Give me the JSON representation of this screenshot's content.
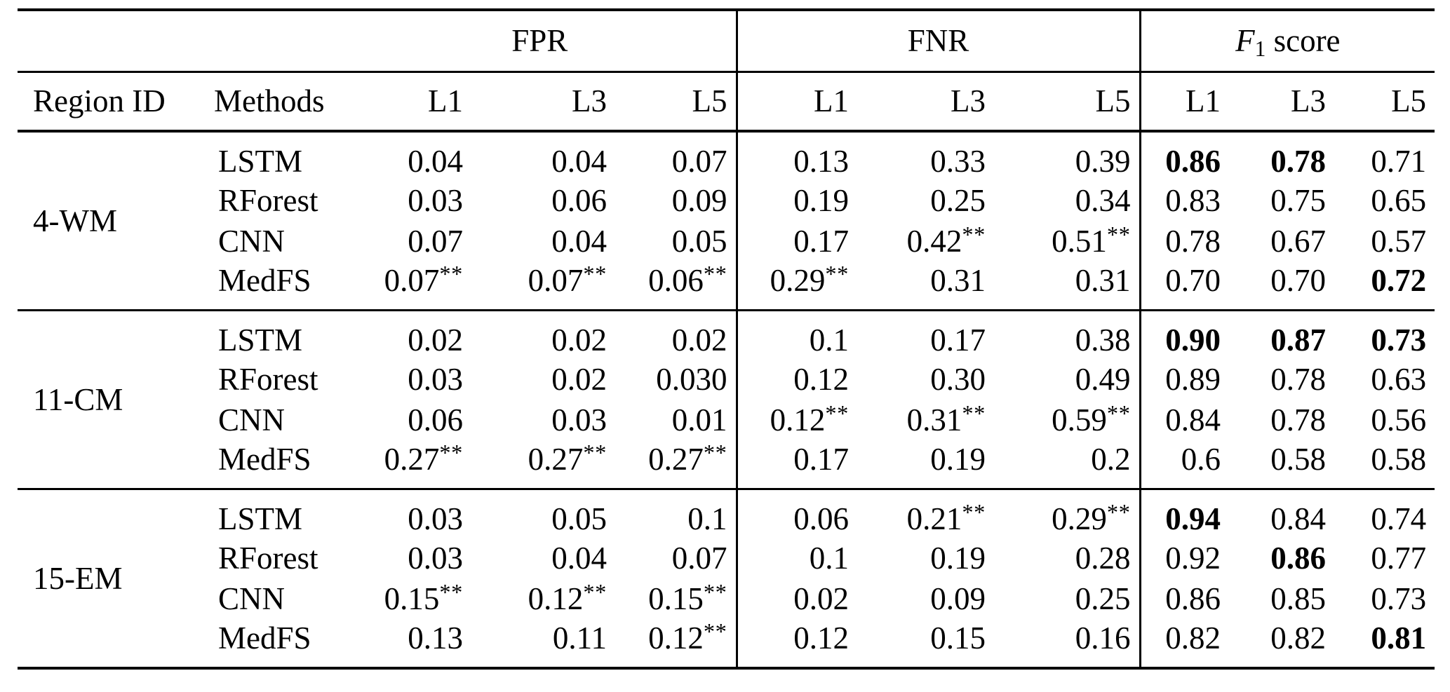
{
  "table": {
    "corner": {
      "region_id": "Region ID",
      "methods": "Methods"
    },
    "groups": [
      {
        "id": "fpr",
        "label": "FPR"
      },
      {
        "id": "fnr",
        "label": "FNR"
      },
      {
        "id": "f1",
        "label_parts": {
          "italic": "F",
          "subscript": "1",
          "text": "score"
        }
      }
    ],
    "level_headers": [
      "L1",
      "L3",
      "L5"
    ],
    "significance_marker": "**",
    "blocks": [
      {
        "region": "4-WM",
        "rows": [
          {
            "method": "LSTM",
            "fpr": [
              "0.04",
              "0.04",
              "0.07"
            ],
            "fnr": [
              "0.13",
              "0.33",
              "0.39"
            ],
            "f1": [
              "0.86",
              "0.78",
              "0.71"
            ],
            "f1_bold": [
              true,
              true,
              false
            ]
          },
          {
            "method": "RForest",
            "fpr": [
              "0.03",
              "0.06",
              "0.09"
            ],
            "fnr": [
              "0.19",
              "0.25",
              "0.34"
            ],
            "f1": [
              "0.83",
              "0.75",
              "0.65"
            ],
            "f1_bold": [
              false,
              false,
              false
            ]
          },
          {
            "method": "CNN",
            "fpr": [
              "0.07",
              "0.04",
              "0.05"
            ],
            "fnr": [
              "0.17",
              "0.42**",
              "0.51**"
            ],
            "f1": [
              "0.78",
              "0.67",
              "0.57"
            ],
            "f1_bold": [
              false,
              false,
              false
            ]
          },
          {
            "method": "MedFS",
            "fpr": [
              "0.07**",
              "0.07**",
              "0.06**"
            ],
            "fnr": [
              "0.29**",
              "0.31",
              "0.31"
            ],
            "f1": [
              "0.70",
              "0.70",
              "0.72"
            ],
            "f1_bold": [
              false,
              false,
              true
            ]
          }
        ]
      },
      {
        "region": "11-CM",
        "rows": [
          {
            "method": "LSTM",
            "fpr": [
              "0.02",
              "0.02",
              "0.02"
            ],
            "fnr": [
              "0.1",
              "0.17",
              "0.38"
            ],
            "f1": [
              "0.90",
              "0.87",
              "0.73"
            ],
            "f1_bold": [
              true,
              true,
              true
            ]
          },
          {
            "method": "RForest",
            "fpr": [
              "0.03",
              "0.02",
              "0.030"
            ],
            "fnr": [
              "0.12",
              "0.30",
              "0.49"
            ],
            "f1": [
              "0.89",
              "0.78",
              "0.63"
            ],
            "f1_bold": [
              false,
              false,
              false
            ]
          },
          {
            "method": "CNN",
            "fpr": [
              "0.06",
              "0.03",
              "0.01"
            ],
            "fnr": [
              "0.12**",
              "0.31**",
              "0.59**"
            ],
            "f1": [
              "0.84",
              "0.78",
              "0.56"
            ],
            "f1_bold": [
              false,
              false,
              false
            ]
          },
          {
            "method": "MedFS",
            "fpr": [
              "0.27**",
              "0.27**",
              "0.27**"
            ],
            "fnr": [
              "0.17",
              "0.19",
              "0.2"
            ],
            "f1": [
              "0.6",
              "0.58",
              "0.58"
            ],
            "f1_bold": [
              false,
              false,
              false
            ]
          }
        ]
      },
      {
        "region": "15-EM",
        "rows": [
          {
            "method": "LSTM",
            "fpr": [
              "0.03",
              "0.05",
              "0.1"
            ],
            "fnr": [
              "0.06",
              "0.21**",
              "0.29**"
            ],
            "f1": [
              "0.94",
              "0.84",
              "0.74"
            ],
            "f1_bold": [
              true,
              false,
              false
            ]
          },
          {
            "method": "RForest",
            "fpr": [
              "0.03",
              "0.04",
              "0.07"
            ],
            "fnr": [
              "0.1",
              "0.19",
              "0.28"
            ],
            "f1": [
              "0.92",
              "0.86",
              "0.77"
            ],
            "f1_bold": [
              false,
              true,
              false
            ]
          },
          {
            "method": "CNN",
            "fpr": [
              "0.15**",
              "0.12**",
              "0.15**"
            ],
            "fnr": [
              "0.02",
              "0.09",
              "0.25"
            ],
            "f1": [
              "0.86",
              "0.85",
              "0.73"
            ],
            "f1_bold": [
              false,
              false,
              false
            ]
          },
          {
            "method": "MedFS",
            "fpr": [
              "0.13",
              "0.11",
              "0.12**"
            ],
            "fnr": [
              "0.12",
              "0.15",
              "0.16"
            ],
            "f1": [
              "0.82",
              "0.82",
              "0.81"
            ],
            "f1_bold": [
              false,
              false,
              true
            ]
          }
        ]
      }
    ]
  }
}
